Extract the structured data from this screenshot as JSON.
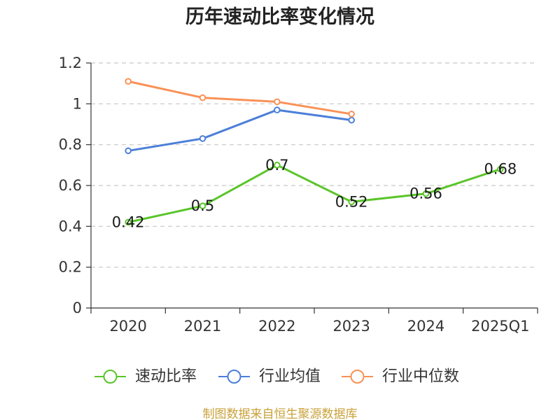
{
  "chart_data": {
    "type": "line",
    "title": "历年速动比率变化情况",
    "categories": [
      "2020",
      "2021",
      "2022",
      "2023",
      "2024",
      "2025Q1"
    ],
    "ylim": [
      0,
      1.2
    ],
    "yticks": [
      0,
      0.2,
      0.4,
      0.6,
      0.8,
      1,
      1.2
    ],
    "grid": true,
    "legend_position": "bottom",
    "series": [
      {
        "name": "速动比率",
        "values": [
          0.42,
          0.5,
          0.7,
          0.52,
          0.56,
          0.68
        ],
        "color": "#5ac52a",
        "show_labels": true
      },
      {
        "name": "行业均值",
        "values": [
          0.77,
          0.83,
          0.97,
          0.92,
          null,
          null
        ],
        "color": "#4c7fd8",
        "show_labels": false
      },
      {
        "name": "行业中位数",
        "values": [
          1.11,
          1.03,
          1.01,
          0.95,
          null,
          null
        ],
        "color": "#f99157",
        "show_labels": false
      }
    ]
  },
  "source_note": "制图数据来自恒生聚源数据库",
  "source_note_color": "#c9a13a"
}
